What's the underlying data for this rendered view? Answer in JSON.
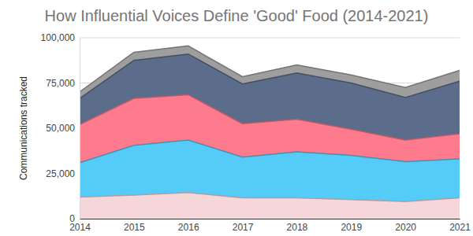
{
  "chart_data": {
    "type": "area",
    "title": "How Influential Voices Define 'Good' Food (2014-2021)",
    "y_label": "Communications tracked",
    "stacked": true,
    "grid": true,
    "x": [
      2014,
      2015,
      2016,
      2017,
      2018,
      2019,
      2020,
      2021
    ],
    "xlim": [
      2014,
      2021
    ],
    "xticks": [
      2014,
      2015,
      2016,
      2017,
      2018,
      2019,
      2020,
      2021
    ],
    "ylim": [
      0,
      100000
    ],
    "yticks": [
      0,
      {
        "value": 25000,
        "label": "25,000"
      },
      {
        "value": 50000,
        "label": "50,000"
      },
      {
        "value": 75000,
        "label": "75,000"
      },
      {
        "value": 100000,
        "label": "100,000"
      }
    ],
    "series": [
      {
        "color": "#f5d7da",
        "values": [
          12000,
          13000,
          14500,
          11500,
          11500,
          10500,
          9500,
          11500
        ]
      },
      {
        "color": "#55cbf8",
        "values": [
          19000,
          27500,
          29000,
          22500,
          25500,
          24500,
          22000,
          21500
        ]
      },
      {
        "color": "#fd7b8d",
        "values": [
          21000,
          26000,
          25000,
          18500,
          18000,
          14500,
          12000,
          14000
        ]
      },
      {
        "color": "#5c6c8b",
        "values": [
          14500,
          21000,
          22500,
          22000,
          25500,
          25500,
          23500,
          29000
        ]
      },
      {
        "color": "#9e9e9e",
        "values": [
          3500,
          4500,
          4500,
          4000,
          4500,
          4500,
          5500,
          6000
        ]
      }
    ]
  }
}
